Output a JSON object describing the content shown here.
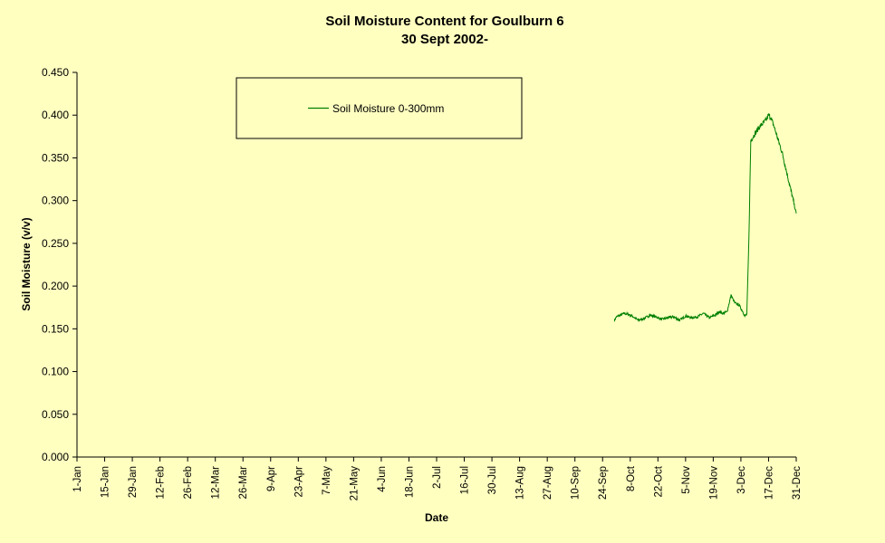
{
  "chart_data": {
    "type": "line",
    "title": "Soil Moisture Content for Goulburn 6",
    "subtitle": "30 Sept 2002-",
    "xlabel": "Date",
    "ylabel": "Soil Moisture (v/v)",
    "ylim": [
      0,
      0.45
    ],
    "yticks": [
      "0.000",
      "0.050",
      "0.100",
      "0.150",
      "0.200",
      "0.250",
      "0.300",
      "0.350",
      "0.400",
      "0.450"
    ],
    "x_tick_labels": [
      "1-Jan",
      "15-Jan",
      "29-Jan",
      "12-Feb",
      "26-Feb",
      "12-Mar",
      "26-Mar",
      "9-Apr",
      "23-Apr",
      "7-May",
      "21-May",
      "4-Jun",
      "18-Jun",
      "2-Jul",
      "16-Jul",
      "30-Jul",
      "13-Aug",
      "27-Aug",
      "10-Sep",
      "24-Sep",
      "8-Oct",
      "22-Oct",
      "5-Nov",
      "19-Nov",
      "3-Dec",
      "17-Dec",
      "31-Dec"
    ],
    "grid": false,
    "legend_position": "top-center",
    "colors": {
      "background": "#ffffc0",
      "series": "#008000",
      "axis": "#000000"
    },
    "series": [
      {
        "name": "Soil Moisture 0-300mm",
        "x": [
          "30-Sep",
          "1-Oct",
          "3-Oct",
          "5-Oct",
          "7-Oct",
          "9-Oct",
          "12-Oct",
          "15-Oct",
          "18-Oct",
          "21-Oct",
          "24-Oct",
          "27-Oct",
          "30-Oct",
          "2-Nov",
          "5-Nov",
          "8-Nov",
          "11-Nov",
          "14-Nov",
          "17-Nov",
          "20-Nov",
          "22-Nov",
          "24-Nov",
          "26-Nov",
          "28-Nov",
          "30-Nov",
          "2-Dec",
          "4-Dec",
          "5-Dec",
          "6-Dec",
          "7-Dec",
          "8-Dec",
          "10-Dec",
          "12-Dec",
          "14-Dec",
          "16-Dec",
          "17-Dec",
          "18-Dec",
          "20-Dec",
          "22-Dec",
          "24-Dec",
          "26-Dec",
          "28-Dec",
          "30-Dec",
          "31-Dec"
        ],
        "y": [
          0.16,
          0.164,
          0.166,
          0.168,
          0.167,
          0.165,
          0.16,
          0.162,
          0.166,
          0.164,
          0.161,
          0.163,
          0.164,
          0.16,
          0.165,
          0.163,
          0.164,
          0.168,
          0.163,
          0.166,
          0.17,
          0.168,
          0.17,
          0.189,
          0.18,
          0.178,
          0.17,
          0.165,
          0.167,
          0.25,
          0.37,
          0.378,
          0.385,
          0.39,
          0.395,
          0.4,
          0.398,
          0.385,
          0.37,
          0.355,
          0.335,
          0.315,
          0.295,
          0.285
        ]
      }
    ]
  }
}
